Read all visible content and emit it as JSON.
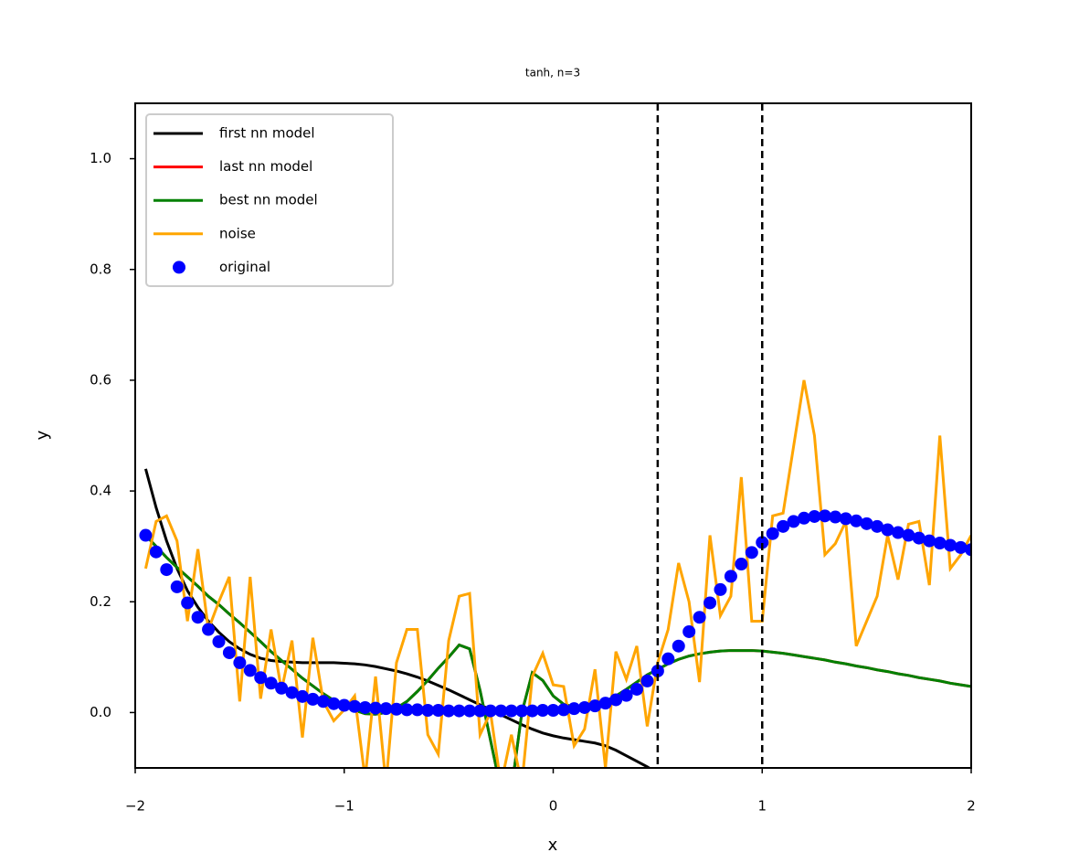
{
  "chart_data": {
    "type": "line",
    "title": "tanh, n=3",
    "x_label": "x",
    "y_label": "y",
    "x": [
      -1.95,
      -1.9,
      -1.85,
      -1.8,
      -1.75,
      -1.7,
      -1.65,
      -1.6,
      -1.55,
      -1.5,
      -1.45,
      -1.4,
      -1.35,
      -1.3,
      -1.25,
      -1.2,
      -1.15,
      -1.1,
      -1.05,
      -1.0,
      -0.95,
      -0.9,
      -0.85,
      -0.8,
      -0.75,
      -0.7,
      -0.65,
      -0.6,
      -0.55,
      -0.5,
      -0.45,
      -0.4,
      -0.35,
      -0.3,
      -0.25,
      -0.2,
      -0.15,
      -0.1,
      -0.05,
      0,
      0.05,
      0.1,
      0.15,
      0.2,
      0.25,
      0.3,
      0.35,
      0.4,
      0.45,
      0.5,
      0.55,
      0.6,
      0.65,
      0.7,
      0.75,
      0.8,
      0.85,
      0.9,
      0.95,
      1.0,
      1.05,
      1.1,
      1.15,
      1.2,
      1.25,
      1.3,
      1.35,
      1.4,
      1.45,
      1.5,
      1.55,
      1.6,
      1.65,
      1.7,
      1.75,
      1.8,
      1.85,
      1.9,
      1.95,
      2.0
    ],
    "series": [
      {
        "name": "first nn model",
        "color": "#000000",
        "mode": "lines",
        "values": [
          0.44,
          0.37,
          0.31,
          0.26,
          0.22,
          0.19,
          0.165,
          0.145,
          0.128,
          0.115,
          0.105,
          0.098,
          0.094,
          0.092,
          0.091,
          0.09,
          0.09,
          0.09,
          0.09,
          0.089,
          0.088,
          0.086,
          0.083,
          0.079,
          0.075,
          0.07,
          0.064,
          0.057,
          0.049,
          0.041,
          0.032,
          0.023,
          0.014,
          0.005,
          -0.004,
          -0.013,
          -0.022,
          -0.03,
          -0.037,
          -0.042,
          -0.046,
          -0.049,
          -0.052,
          -0.055,
          -0.06,
          -0.068,
          -0.078,
          -0.088,
          -0.098,
          -0.11,
          null,
          null,
          null,
          null,
          null,
          null,
          null,
          null,
          null,
          null,
          null,
          null,
          null,
          null,
          null,
          null,
          null,
          null,
          null,
          null,
          null,
          null,
          null,
          null,
          null,
          null,
          null,
          null,
          null,
          null
        ]
      },
      {
        "name": "last nn model",
        "color": "#ff0000",
        "mode": "lines",
        "values": [
          0.32,
          0.3,
          0.28,
          0.262,
          0.245,
          0.228,
          0.21,
          0.195,
          0.178,
          0.162,
          0.145,
          0.128,
          0.11,
          0.094,
          0.078,
          0.062,
          0.048,
          0.034,
          0.022,
          0.012,
          0.004,
          -0.002,
          -0.003,
          0.0,
          0.008,
          0.02,
          0.038,
          0.058,
          0.08,
          0.1,
          0.122,
          0.115,
          0.04,
          -0.05,
          -0.14,
          -0.14,
          0.0,
          0.072,
          0.058,
          0.03,
          0.015,
          0.01,
          0.01,
          0.013,
          0.02,
          0.03,
          0.042,
          0.055,
          0.068,
          0.078,
          0.088,
          0.096,
          0.102,
          0.106,
          0.109,
          0.111,
          0.112,
          0.112,
          0.112,
          0.111,
          0.109,
          0.107,
          0.104,
          0.101,
          0.098,
          0.095,
          0.091,
          0.088,
          0.084,
          0.081,
          0.077,
          0.074,
          0.07,
          0.067,
          0.063,
          0.06,
          0.057,
          0.053,
          0.05,
          0.047
        ]
      },
      {
        "name": "best nn model",
        "color": "#008000",
        "mode": "lines",
        "values": [
          0.32,
          0.3,
          0.28,
          0.262,
          0.245,
          0.228,
          0.21,
          0.195,
          0.178,
          0.162,
          0.145,
          0.128,
          0.11,
          0.094,
          0.078,
          0.062,
          0.048,
          0.034,
          0.022,
          0.012,
          0.004,
          -0.002,
          -0.003,
          0.0,
          0.008,
          0.02,
          0.038,
          0.058,
          0.08,
          0.1,
          0.122,
          0.115,
          0.04,
          -0.05,
          -0.14,
          -0.14,
          0.0,
          0.072,
          0.058,
          0.03,
          0.015,
          0.01,
          0.01,
          0.013,
          0.02,
          0.03,
          0.042,
          0.055,
          0.068,
          0.078,
          0.088,
          0.096,
          0.102,
          0.106,
          0.109,
          0.111,
          0.112,
          0.112,
          0.112,
          0.111,
          0.109,
          0.107,
          0.104,
          0.101,
          0.098,
          0.095,
          0.091,
          0.088,
          0.084,
          0.081,
          0.077,
          0.074,
          0.07,
          0.067,
          0.063,
          0.06,
          0.057,
          0.053,
          0.05,
          0.047
        ]
      },
      {
        "name": "noise",
        "color": "#ffa500",
        "mode": "lines",
        "values": [
          0.26,
          0.345,
          0.355,
          0.31,
          0.165,
          0.295,
          0.15,
          0.2,
          0.245,
          0.02,
          0.245,
          0.025,
          0.15,
          0.04,
          0.13,
          -0.045,
          0.135,
          0.02,
          -0.015,
          0.005,
          0.03,
          -0.12,
          0.065,
          -0.13,
          0.09,
          0.15,
          0.15,
          -0.04,
          -0.075,
          0.13,
          0.21,
          0.215,
          -0.04,
          0.0,
          -0.13,
          -0.04,
          -0.13,
          0.065,
          0.107,
          0.05,
          0.047,
          -0.06,
          -0.03,
          0.078,
          -0.1,
          0.11,
          0.06,
          0.12,
          -0.025,
          0.09,
          0.15,
          0.27,
          0.2,
          0.055,
          0.32,
          0.175,
          0.21,
          0.425,
          0.165,
          0.165,
          0.355,
          0.36,
          0.48,
          0.6,
          0.5,
          0.285,
          0.305,
          0.345,
          0.12,
          0.165,
          0.21,
          0.32,
          0.24,
          0.34,
          0.345,
          0.23,
          0.5,
          0.26,
          0.285,
          0.32
        ]
      },
      {
        "name": "original",
        "color": "#0000ff",
        "mode": "markers",
        "values": [
          0.32,
          0.29,
          0.258,
          0.227,
          0.198,
          0.172,
          0.15,
          0.128,
          0.108,
          0.09,
          0.076,
          0.063,
          0.053,
          0.044,
          0.036,
          0.029,
          0.024,
          0.02,
          0.016,
          0.013,
          0.011,
          0.009,
          0.008,
          0.007,
          0.006,
          0.005,
          0.005,
          0.004,
          0.004,
          0.003,
          0.003,
          0.003,
          0.003,
          0.003,
          0.003,
          0.003,
          0.003,
          0.003,
          0.004,
          0.004,
          0.005,
          0.007,
          0.009,
          0.012,
          0.017,
          0.023,
          0.031,
          0.042,
          0.057,
          0.075,
          0.097,
          0.12,
          0.146,
          0.172,
          0.198,
          0.222,
          0.246,
          0.268,
          0.289,
          0.307,
          0.323,
          0.336,
          0.345,
          0.351,
          0.354,
          0.355,
          0.353,
          0.35,
          0.346,
          0.341,
          0.336,
          0.33,
          0.325,
          0.32,
          0.315,
          0.31,
          0.306,
          0.302,
          0.298,
          0.294
        ]
      }
    ],
    "vlines": [
      0.5,
      1
    ],
    "xlim": [
      -2,
      2
    ],
    "ylim": [
      -0.1,
      1.1
    ],
    "xticks": [
      {
        "value": -2,
        "label": "−2"
      },
      {
        "value": -1,
        "label": "−1"
      },
      0,
      1,
      2
    ],
    "yticks": [
      {
        "value": 0,
        "label": "0.0"
      },
      0.2,
      0.4,
      0.6,
      0.8,
      {
        "value": 1,
        "label": "1.0"
      }
    ],
    "grid": false,
    "legend": "upper left"
  }
}
